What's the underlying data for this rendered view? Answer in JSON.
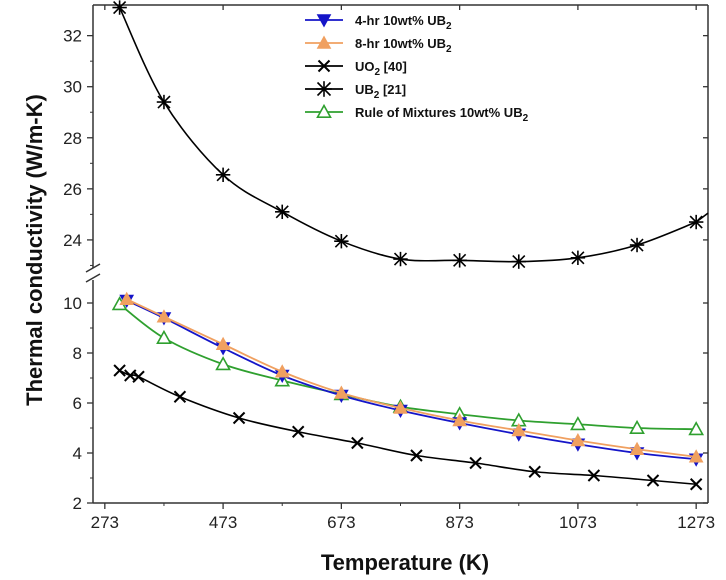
{
  "chart_data": {
    "type": "line",
    "xlabel": "Temperature (K)",
    "ylabel": "Thermal conductivity (W/m-K)",
    "xlim": [
      253,
      1293
    ],
    "x_ticks": [
      273,
      473,
      673,
      873,
      1073,
      1273
    ],
    "x_tick_labels": [
      "273",
      "473",
      "673",
      "873",
      "1073",
      "1273"
    ],
    "axis_break": true,
    "y_upper_range": [
      22.9,
      33.2
    ],
    "y_upper_ticks": [
      24,
      26,
      28,
      30,
      32
    ],
    "y_upper_tick_labels": [
      "24",
      "26",
      "28",
      "30",
      "32"
    ],
    "y_lower_range": [
      2,
      10.8
    ],
    "y_lower_ticks": [
      2,
      4,
      6,
      8,
      10
    ],
    "y_lower_tick_labels": [
      "2",
      "4",
      "6",
      "8",
      "10"
    ],
    "legend_position": "top-center",
    "series": [
      {
        "name": "4-hr 10wt% UB",
        "name_sub": "2",
        "color": "#1515c8",
        "marker": "triangle-down-filled",
        "x": [
          310,
          373,
          473,
          573,
          673,
          773,
          873,
          973,
          1073,
          1173,
          1273
        ],
        "y": [
          10.1,
          9.4,
          8.2,
          7.1,
          6.3,
          5.7,
          5.2,
          4.75,
          4.35,
          4.0,
          3.75
        ]
      },
      {
        "name": "8-hr 10wt% UB",
        "name_sub": "2",
        "color": "#f0a060",
        "marker": "triangle-up-filled",
        "x": [
          310,
          373,
          473,
          573,
          673,
          773,
          873,
          973,
          1073,
          1173,
          1273
        ],
        "y": [
          10.15,
          9.45,
          8.35,
          7.25,
          6.4,
          5.8,
          5.3,
          4.9,
          4.5,
          4.15,
          3.85
        ]
      },
      {
        "name": "UO",
        "name_sub": "2",
        "name_suffix": " [40]",
        "color": "#000000",
        "marker": "x",
        "x": [
          298,
          316,
          330,
          400,
          500,
          600,
          700,
          800,
          900,
          1000,
          1100,
          1200,
          1273
        ],
        "y": [
          7.3,
          7.1,
          7.05,
          6.25,
          5.4,
          4.85,
          4.4,
          3.9,
          3.6,
          3.25,
          3.1,
          2.9,
          2.75
        ]
      },
      {
        "name": "UB",
        "name_sub": "2",
        "name_suffix": " [21]",
        "color": "#000000",
        "marker": "asterisk",
        "x": [
          298,
          373,
          473,
          573,
          673,
          773,
          873,
          973,
          1073,
          1173,
          1273
        ],
        "y": [
          33.1,
          29.4,
          26.55,
          25.1,
          23.95,
          23.25,
          23.2,
          23.15,
          23.3,
          23.8,
          24.7
        ]
      },
      {
        "name": "Rule of Mixtures 10wt% UB",
        "name_sub": "2",
        "color": "#2fa02f",
        "marker": "triangle-up-open",
        "x": [
          298,
          373,
          473,
          573,
          673,
          773,
          873,
          973,
          1073,
          1173,
          1273
        ],
        "y": [
          9.95,
          8.6,
          7.55,
          6.9,
          6.35,
          5.85,
          5.55,
          5.3,
          5.15,
          5.0,
          4.95
        ]
      }
    ]
  }
}
